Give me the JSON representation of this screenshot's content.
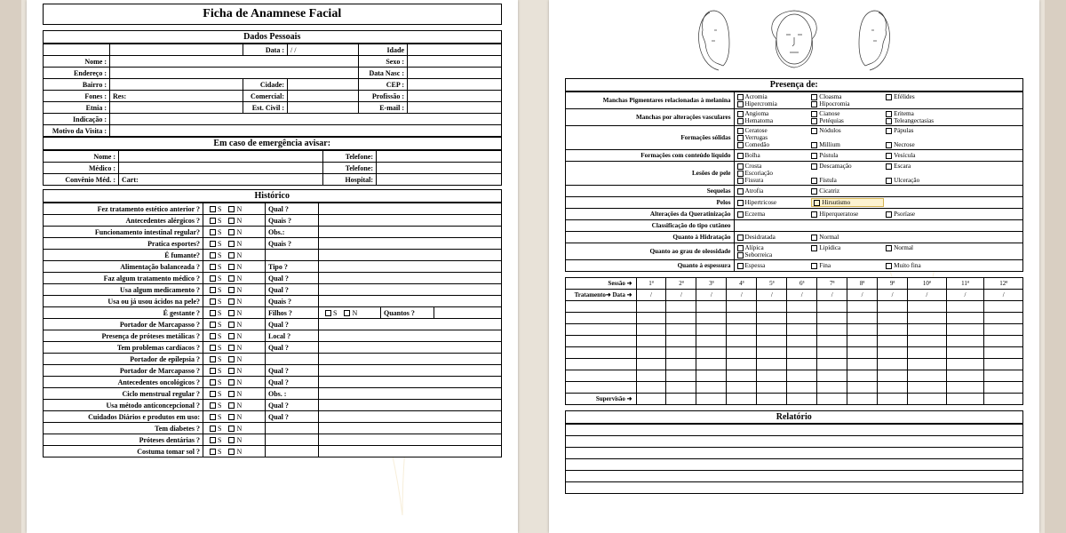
{
  "colors": {
    "bg": "#e8e2d8",
    "page": "#ffffff",
    "line": "#000000",
    "deco": "#e0be6c"
  },
  "page1": {
    "title": "Ficha de Anamnese Facial",
    "dados_head": "Dados Pessoais",
    "dados": {
      "data": "Data :",
      "slashes": "/      /",
      "idade": "Idade",
      "nome": "Nome :",
      "sexo": "Sexo :",
      "endereco": "Endereço :",
      "dataNasc": "Data Nasc :",
      "bairro": "Bairro :",
      "cidade": "Cidade:",
      "cep": "CEP :",
      "fones": "Fones :",
      "res": "Res:",
      "comercial": "Comercial:",
      "profissao": "Profissão :",
      "etnia": "Etnia :",
      "estCivil": "Est. Civil :",
      "email": "E-mail :",
      "indicacao": "Indicação :",
      "motivo": "Motivo da Visita :"
    },
    "emerg_head": "Em caso de emergência avisar:",
    "emerg": {
      "nome": "Nome :",
      "telefone": "Telefone:",
      "medico": "Médico :",
      "telefone2": "Telefone:",
      "convenio": "Convênio Méd. :",
      "cart": "Cart:",
      "hospital": "Hospital:"
    },
    "hist_head": "Histórico",
    "historico": [
      {
        "q": "Fez tratamento estético anterior ?",
        "extra": "Qual ?"
      },
      {
        "q": "Antecedentes alérgicos ?",
        "extra": "Quais ?"
      },
      {
        "q": "Funcionamento intestinal regular?",
        "extra": "Obs.:"
      },
      {
        "q": "Pratica esportes?",
        "extra": "Quais ?"
      },
      {
        "q": "É fumante?",
        "extra": ""
      },
      {
        "q": "Alimentação balanceada ?",
        "extra": "Tipo ?"
      },
      {
        "q": "Faz algum tratamento médico ?",
        "extra": "Qual ?"
      },
      {
        "q": "Usa algum medicamento ?",
        "extra": "Qual ?"
      },
      {
        "q": "Usa ou já usou ácidos na pele?",
        "extra": "Quais ?"
      },
      {
        "q": "É gestante ?",
        "extra": "Filhos ?",
        "filhos": true,
        "quantos": "Quantos ?"
      },
      {
        "q": "Portador de Marcapasso ?",
        "extra": "Qual ?"
      },
      {
        "q": "Presença de próteses metálicas ?",
        "extra": "Local ?"
      },
      {
        "q": "Tem problemas cardíacos ?",
        "extra": "Qual ?"
      },
      {
        "q": "Portador de epilepsia ?",
        "extra": ""
      },
      {
        "q": "Portador de Marcapasso ?",
        "extra": "Qual ?"
      },
      {
        "q": "Antecedentes oncológicos ?",
        "extra": "Qual ?"
      },
      {
        "q": "Ciclo  menstrual regular ?",
        "extra": "Obs. :"
      },
      {
        "q": "Usa método anticoncepcional ?",
        "extra": "Qual ?"
      },
      {
        "q": "Cuidados Diários e produtos em uso:",
        "extra": "Qual ?"
      },
      {
        "q": "Tem diabetes ?",
        "extra": ""
      },
      {
        "q": "Próteses dentárias ?",
        "extra": ""
      },
      {
        "q": "Costuma tomar sol ?",
        "extra": ""
      }
    ],
    "s": "S",
    "n": "N"
  },
  "page2": {
    "presenca_head": "Presença de:",
    "presenca": [
      {
        "label": "Manchas Pigmentares relacionadas à melanina",
        "opts": [
          "Acromia",
          "Cloasma",
          "Efélides",
          "Hipercromia",
          "Hipocromia"
        ],
        "wrap": 2
      },
      {
        "label": "Manchas por alterações vasculares",
        "opts": [
          "Angioma",
          "Cianose",
          "Eritema",
          "Hematoma",
          "Petéquias",
          "Teleangectasias"
        ],
        "wrap": 2
      },
      {
        "label": "Formações sólidas",
        "opts": [
          "Ceratose",
          "Nódulos",
          "Pápulas",
          "Verrugas",
          "Comedão",
          "Millium",
          "Necrose"
        ],
        "wrap": 2
      },
      {
        "label": "Formações com conteúdo líquido",
        "opts": [
          "Bolha",
          "Pústula",
          "Vesícula"
        ]
      },
      {
        "label": "Lesões de pele",
        "opts": [
          "Crosta",
          "Descamação",
          "Escara",
          "Escoriação",
          "Fissura",
          "Fístula",
          "Ulceração"
        ],
        "wrap": 2
      },
      {
        "label": "Sequelas",
        "opts": [
          "Atrofia",
          "Cicatriz"
        ]
      },
      {
        "label": "Pelos",
        "opts": [
          "Hipertricose",
          "Hirsutismo"
        ],
        "mark": "Hirsutismo"
      },
      {
        "label": "Alterações da Queratinização",
        "opts": [
          "Eczema",
          "Hiperqueratose",
          "Psoríase"
        ]
      },
      {
        "label": "Classificação do tipo cutâneo",
        "opts": []
      },
      {
        "label": "Quanto à Hidratação",
        "opts": [
          "Desidratada",
          "Normal"
        ]
      },
      {
        "label": "Quanto ao grau de oleosidade",
        "opts": [
          "Alípica",
          "Lipídica",
          "Normal",
          "Seborreica"
        ]
      },
      {
        "label": "Quanto à espessura",
        "opts": [
          "Espessa",
          "Fina",
          "Muito fina"
        ]
      }
    ],
    "sess_labels": {
      "sessao": "Sessão ➜",
      "tratamento": "Tratamento➜",
      "data": "Data ➜",
      "supervisao": "Supervisão ➜"
    },
    "sess_cols": [
      "1ª",
      "2ª",
      "3ª",
      "4ª",
      "5ª",
      "6ª",
      "7ª",
      "8ª",
      "9ª",
      "10ª",
      "11ª",
      "12ª"
    ],
    "relatorio_head": "Relatório"
  }
}
